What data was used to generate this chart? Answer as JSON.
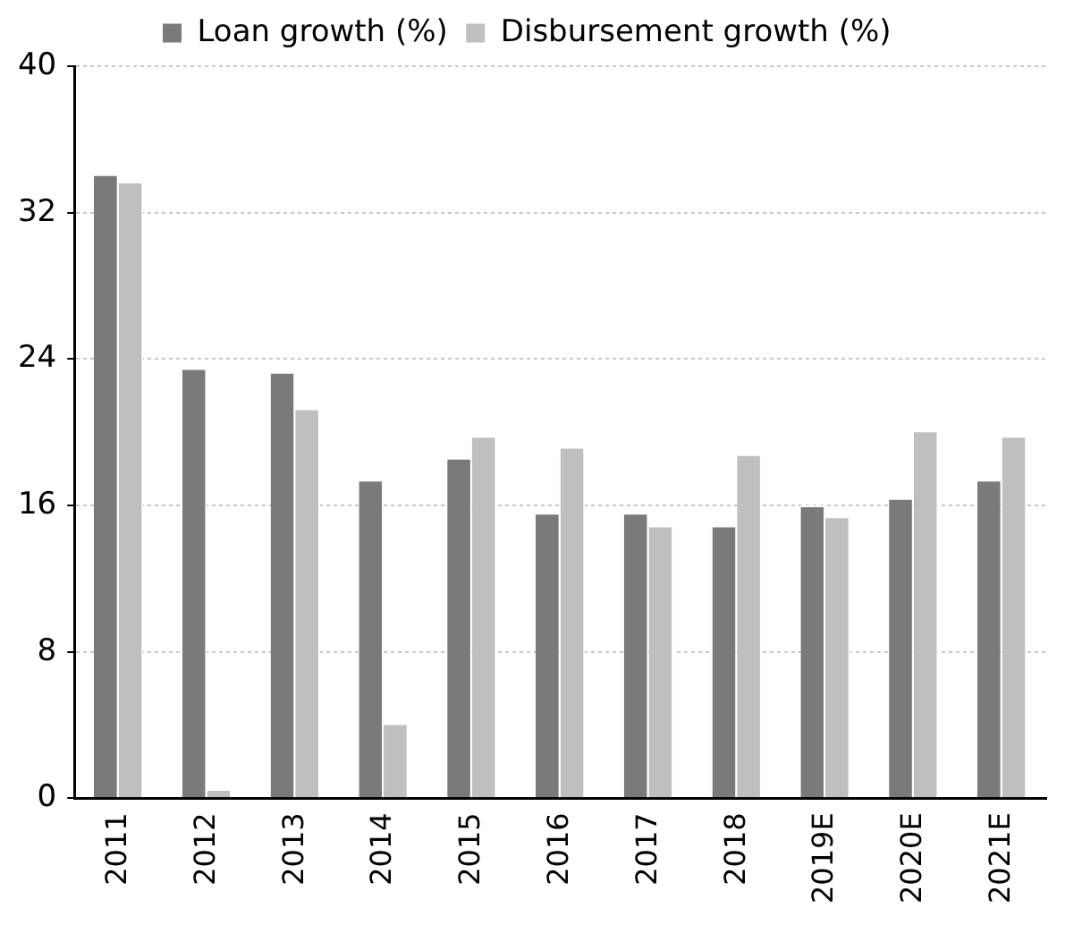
{
  "chart_data": {
    "type": "bar",
    "categories": [
      "2011",
      "2012",
      "2013",
      "2014",
      "2015",
      "2016",
      "2017",
      "2018",
      "2019E",
      "2020E",
      "2021E"
    ],
    "series": [
      {
        "name": "Loan growth (%)",
        "color": "#7a7a7a",
        "values": [
          34.1,
          23.5,
          23.3,
          17.4,
          18.6,
          15.6,
          15.6,
          14.9,
          16.0,
          16.4,
          17.4
        ]
      },
      {
        "name": "Disbursement growth (%)",
        "color": "#bfbfbf",
        "values": [
          33.7,
          0.5,
          21.3,
          4.1,
          19.8,
          19.2,
          14.9,
          18.8,
          15.4,
          20.1,
          19.8
        ]
      }
    ],
    "ylim": [
      0,
      40
    ],
    "yticks": [
      0,
      8,
      16,
      24,
      32,
      40
    ],
    "grid": "y",
    "legend": "top"
  }
}
